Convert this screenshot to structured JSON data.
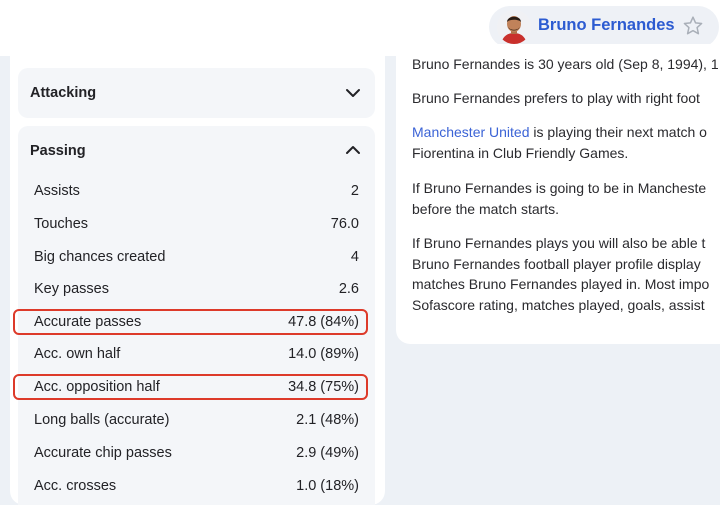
{
  "header": {
    "player_name": "Bruno Fernandes",
    "avatar_icon": "player-avatar",
    "favorite_icon": "star-outline-icon"
  },
  "left_panel": {
    "attacking": {
      "title": "Attacking",
      "state_icon": "chevron-down-icon"
    },
    "passing": {
      "title": "Passing",
      "state_icon": "chevron-up-icon",
      "stats": [
        {
          "label": "Assists",
          "value": "2",
          "highlighted": false
        },
        {
          "label": "Touches",
          "value": "76.0",
          "highlighted": false
        },
        {
          "label": "Big chances created",
          "value": "4",
          "highlighted": false
        },
        {
          "label": "Key passes",
          "value": "2.6",
          "highlighted": false
        },
        {
          "label": "Accurate passes",
          "value": "47.8 (84%)",
          "highlighted": true
        },
        {
          "label": "Acc. own half",
          "value": "14.0 (89%)",
          "highlighted": false
        },
        {
          "label": "Acc. opposition half",
          "value": "34.8 (75%)",
          "highlighted": true
        },
        {
          "label": "Long balls (accurate)",
          "value": "2.1 (48%)",
          "highlighted": false
        },
        {
          "label": "Accurate chip passes",
          "value": "2.9 (49%)",
          "highlighted": false
        },
        {
          "label": "Acc. crosses",
          "value": "1.0 (18%)",
          "highlighted": false
        }
      ]
    },
    "highlight_color": "#dd3a2a"
  },
  "about": {
    "p1": "Bruno Fernandes is 30 years old (Sep 8, 1994), 1",
    "p2": "Bruno Fernandes prefers to play with right foot",
    "p3_link": "Manchester United",
    "p3_rest": " is playing their next match o",
    "p3_line2": "Fiorentina in Club Friendly Games.",
    "p4_line1": "If Bruno Fernandes is going to be in Mancheste",
    "p4_line2": "before the match starts.",
    "p5_line1": "If Bruno Fernandes plays you will also be able t",
    "p5_line2": "Bruno Fernandes football player profile display",
    "p5_line3": "matches Bruno Fernandes played in. Most impo",
    "p5_line4": "Sofascore rating, matches played, goals, assist"
  },
  "colors": {
    "accent": "#2c5bd1",
    "link": "#3b63d6",
    "background": "#edf1f6"
  }
}
